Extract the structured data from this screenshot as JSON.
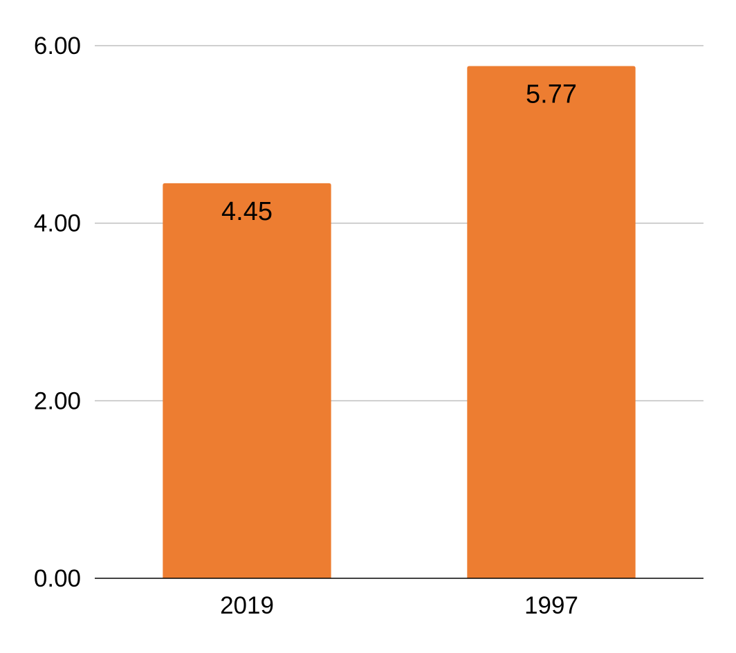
{
  "chart_data": {
    "type": "bar",
    "categories": [
      "2019",
      "1997"
    ],
    "values": [
      4.45,
      5.77
    ],
    "value_labels": [
      "4.45",
      "5.77"
    ],
    "title": "",
    "xlabel": "",
    "ylabel": "",
    "ylim": [
      0,
      6
    ],
    "yticks": [
      0,
      2,
      4,
      6
    ],
    "ytick_labels": [
      "0.00",
      "2.00",
      "4.00",
      "6.00"
    ],
    "grid": true,
    "legend": "none",
    "colors": {
      "bar": "#ED7D31",
      "gridline": "#BFBFBF",
      "axis": "#000000",
      "text": "#000000"
    }
  }
}
